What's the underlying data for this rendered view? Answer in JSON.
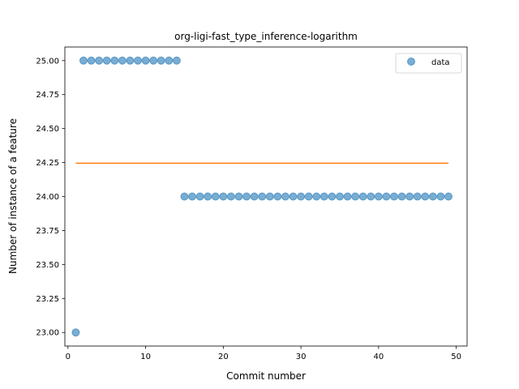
{
  "chart_data": {
    "type": "scatter",
    "title": "org-ligi-fast_type_inference-logarithm",
    "xlabel": "Commit number",
    "ylabel": "Number of instance of a feature",
    "xlim": [
      -0.4,
      51.4
    ],
    "ylim": [
      22.9,
      25.1
    ],
    "x_ticks": [
      0,
      10,
      20,
      30,
      40,
      50
    ],
    "y_ticks": [
      23.0,
      23.25,
      23.5,
      23.75,
      24.0,
      24.25,
      24.5,
      24.75,
      25.0
    ],
    "legend": {
      "position": "top-right",
      "entries": [
        "data"
      ]
    },
    "grid": false,
    "series": [
      {
        "name": "data",
        "kind": "scatter",
        "color": "#1f77b4",
        "x": [
          1,
          2,
          3,
          4,
          5,
          6,
          7,
          8,
          9,
          10,
          11,
          12,
          13,
          14,
          15,
          16,
          17,
          18,
          19,
          20,
          21,
          22,
          23,
          24,
          25,
          26,
          27,
          28,
          29,
          30,
          31,
          32,
          33,
          34,
          35,
          36,
          37,
          38,
          39,
          40,
          41,
          42,
          43,
          44,
          45,
          46,
          47,
          48,
          49
        ],
        "y": [
          23,
          25,
          25,
          25,
          25,
          25,
          25,
          25,
          25,
          25,
          25,
          25,
          25,
          25,
          24,
          24,
          24,
          24,
          24,
          24,
          24,
          24,
          24,
          24,
          24,
          24,
          24,
          24,
          24,
          24,
          24,
          24,
          24,
          24,
          24,
          24,
          24,
          24,
          24,
          24,
          24,
          24,
          24,
          24,
          24,
          24,
          24,
          24,
          24
        ]
      },
      {
        "kind": "line",
        "color": "#ff7f0e",
        "x": [
          1,
          49
        ],
        "y": [
          24.245,
          24.245
        ]
      }
    ]
  }
}
